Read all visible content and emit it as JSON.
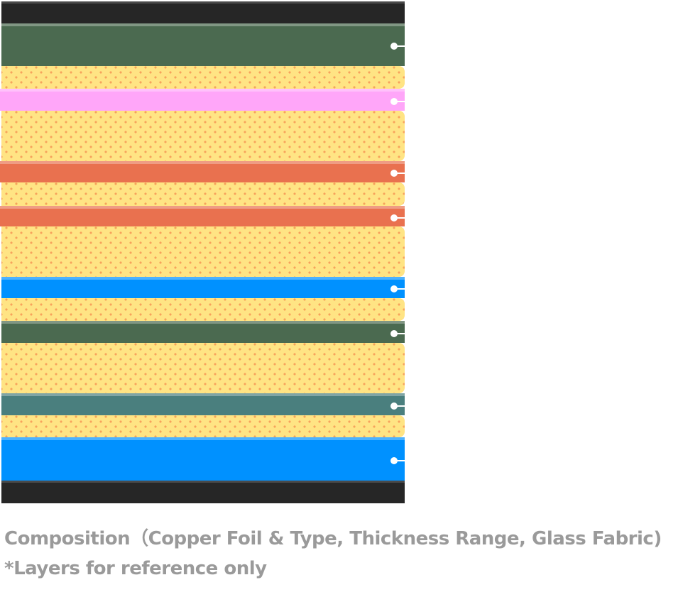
{
  "diagram": {
    "layers": [
      {
        "type": "coverlay",
        "color": "#262626"
      },
      {
        "type": "copper",
        "color": "#4b6a50",
        "marker": true
      },
      {
        "type": "prepreg",
        "color": "#ffe484"
      },
      {
        "type": "copper",
        "color": "#ffa6f9",
        "marker": true
      },
      {
        "type": "prepreg",
        "color": "#ffe484"
      },
      {
        "type": "copper",
        "color": "#e9714f",
        "marker": true
      },
      {
        "type": "prepreg",
        "color": "#ffe484"
      },
      {
        "type": "copper",
        "color": "#e9714f",
        "marker": true
      },
      {
        "type": "prepreg",
        "color": "#ffe484"
      },
      {
        "type": "copper",
        "color": "#0091ff",
        "marker": true
      },
      {
        "type": "prepreg",
        "color": "#ffe484"
      },
      {
        "type": "copper",
        "color": "#4b6a50",
        "marker": true
      },
      {
        "type": "prepreg",
        "color": "#ffe484"
      },
      {
        "type": "copper",
        "color": "#4a7f7e",
        "marker": true
      },
      {
        "type": "prepreg",
        "color": "#ffe484"
      },
      {
        "type": "copper",
        "color": "#0091ff",
        "marker": true
      },
      {
        "type": "coverlay",
        "color": "#262626"
      }
    ],
    "dot_color": "#f7a35c"
  },
  "caption": {
    "line1": "Composition（Copper Foil & Type, Thickness Range, Glass Fabric)",
    "line2": "*Layers for reference only"
  }
}
